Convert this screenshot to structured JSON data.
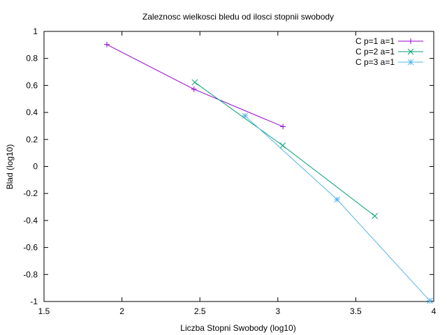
{
  "chart_data": {
    "type": "line",
    "title": "Zaleznosc wielkosci bledu od ilosci stopnii swobody",
    "xlabel": "Liczba Stopni Swobody (log10)",
    "ylabel": "Blad (log10)",
    "xlim": [
      1.5,
      4
    ],
    "ylim": [
      -1,
      1
    ],
    "xticks": [
      1.5,
      2,
      2.5,
      3,
      3.5,
      4
    ],
    "xtick_labels": [
      "1.5",
      "2",
      "2.5",
      "3",
      "3.5",
      "4"
    ],
    "yticks": [
      -1,
      -0.8,
      -0.6,
      -0.4,
      -0.2,
      0,
      0.2,
      0.4,
      0.6,
      0.8,
      1
    ],
    "ytick_labels": [
      "-1",
      "-0.8",
      "-0.6",
      "-0.4",
      "-0.2",
      "0",
      "0.2",
      "0.4",
      "0.6",
      "0.8",
      "1"
    ],
    "grid": false,
    "legend_position": "top-right",
    "series": [
      {
        "name": "C p=1 a=1",
        "color": "#9400d3",
        "marker": "plus",
        "points": [
          [
            1.903,
            0.903
          ],
          [
            2.462,
            0.572
          ],
          [
            3.033,
            0.295
          ]
        ]
      },
      {
        "name": "C p=2 a=1",
        "color": "#009e73",
        "marker": "cross",
        "points": [
          [
            2.467,
            0.623
          ],
          [
            3.031,
            0.155
          ],
          [
            3.622,
            -0.367
          ]
        ]
      },
      {
        "name": "C p=3 a=1",
        "color": "#56b4e9",
        "marker": "star",
        "points": [
          [
            2.79,
            0.375
          ],
          [
            3.38,
            -0.245
          ],
          [
            3.975,
            -0.995
          ]
        ]
      }
    ]
  }
}
